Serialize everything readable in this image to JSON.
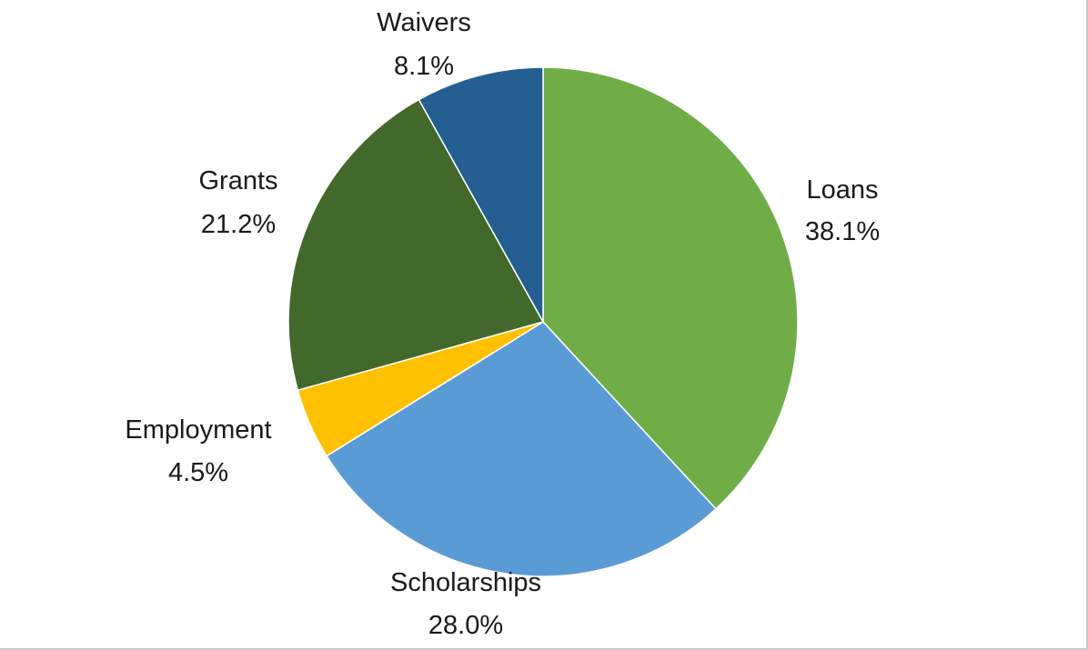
{
  "chart_data": {
    "type": "pie",
    "title": "",
    "start_angle_deg": 0,
    "direction": "clockwise",
    "slices": [
      {
        "name": "Loans",
        "value": 38.1,
        "label": "38.1%",
        "color": "#70ad47"
      },
      {
        "name": "Scholarships",
        "value": 28.0,
        "label": "28.0%",
        "color": "#5b9bd5"
      },
      {
        "name": "Employment",
        "value": 4.5,
        "label": "4.5%",
        "color": "#ffc000"
      },
      {
        "name": "Grants",
        "value": 21.2,
        "label": "21.2%",
        "color": "#43682b"
      },
      {
        "name": "Waivers",
        "value": 8.1,
        "label": "8.1%",
        "color": "#255e91"
      }
    ],
    "legend": "none",
    "data_labels": "outside"
  }
}
